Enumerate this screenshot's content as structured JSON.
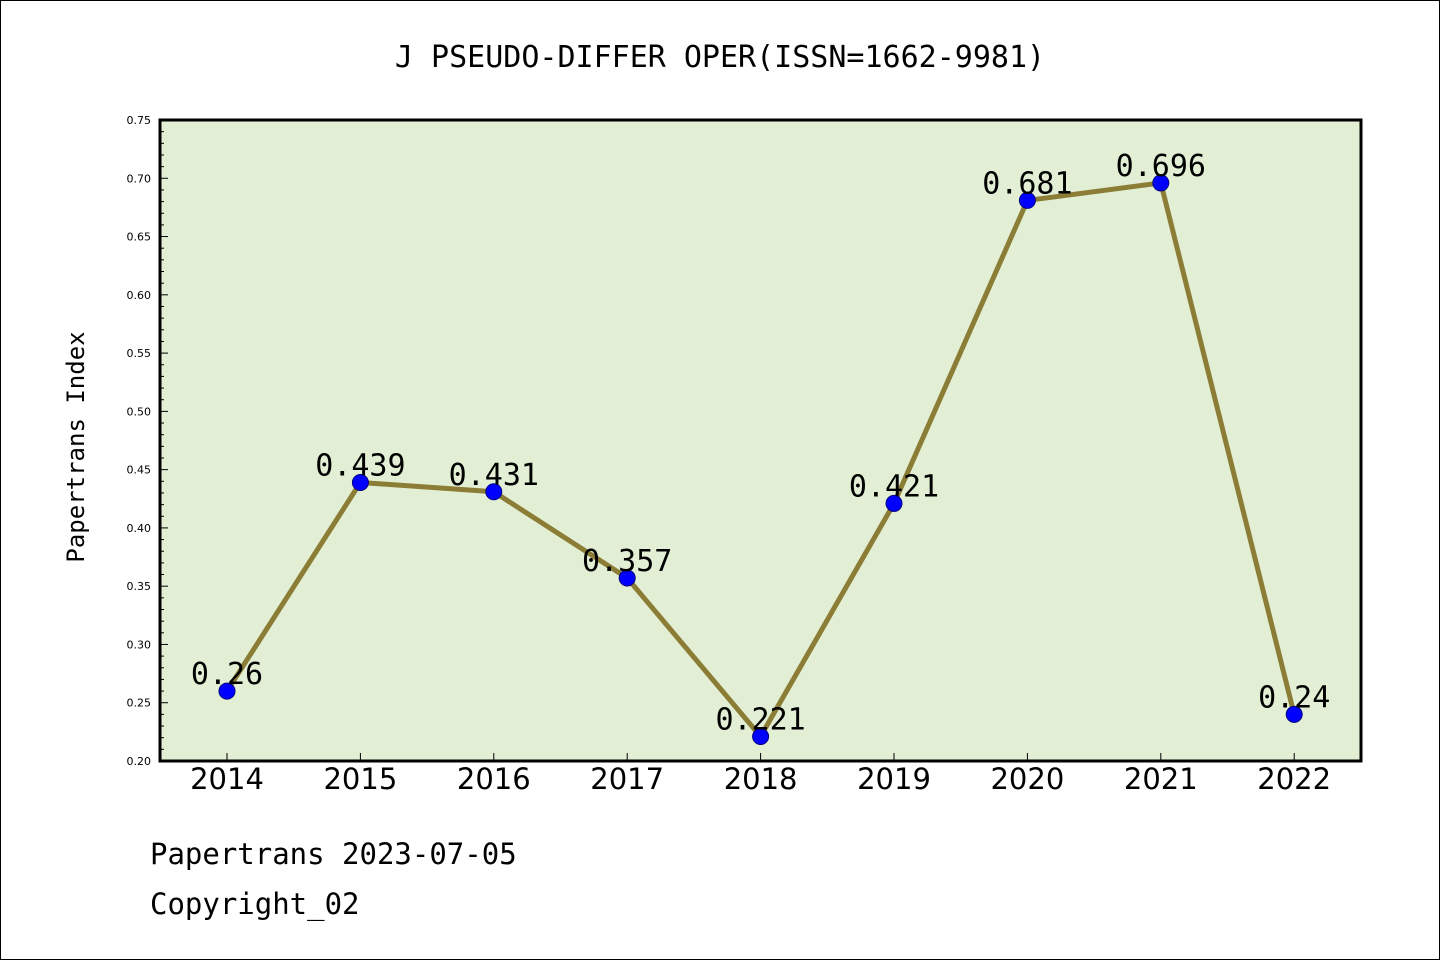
{
  "chart_data": {
    "type": "line",
    "title": "J PSEUDO-DIFFER OPER(ISSN=1662-9981)",
    "xlabel": "",
    "ylabel": "Papertrans Index",
    "categories": [
      "2014",
      "2015",
      "2016",
      "2017",
      "2018",
      "2019",
      "2020",
      "2021",
      "2022"
    ],
    "values": [
      0.26,
      0.439,
      0.431,
      0.357,
      0.221,
      0.421,
      0.681,
      0.696,
      0.24
    ],
    "data_labels": [
      "0.26",
      "0.439",
      "0.431",
      "0.357",
      "0.221",
      "0.421",
      "0.681",
      "0.696",
      "0.24"
    ],
    "ylim": [
      0.2,
      0.75
    ],
    "yticks": [
      "0.20",
      "0.25",
      "0.30",
      "0.35",
      "0.40",
      "0.45",
      "0.50",
      "0.55",
      "0.60",
      "0.65",
      "0.70",
      "0.75"
    ],
    "grid": false,
    "colors": {
      "plot_background": "#e2efd5",
      "line": "#8b7d35",
      "marker": "#0000ff"
    }
  },
  "footer": {
    "line1": "Papertrans 2023-07-05",
    "line2": "Copyright_02"
  }
}
